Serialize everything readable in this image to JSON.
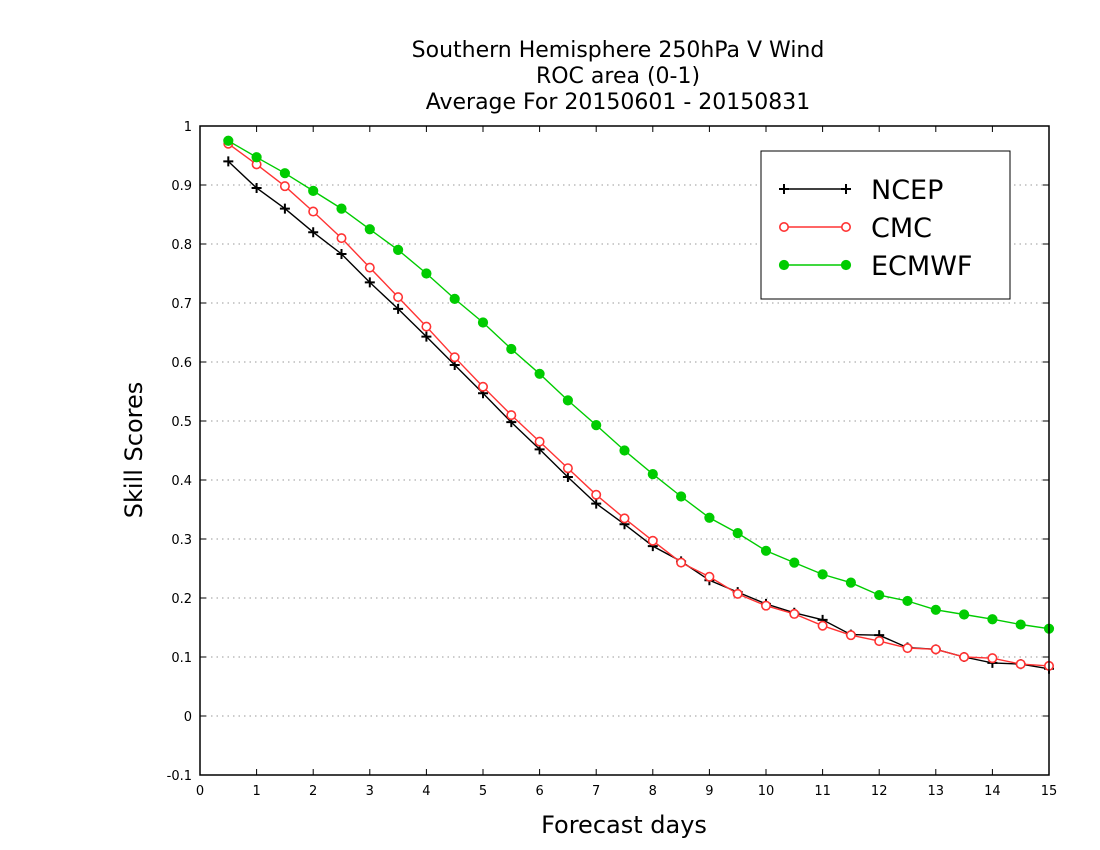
{
  "chart_data": {
    "type": "line",
    "title_lines": [
      "Southern Hemisphere 250hPa V Wind",
      "ROC area (0-1)",
      "Average For 20150601 - 20150831"
    ],
    "xlabel": "Forecast days",
    "ylabel": "Skill Scores",
    "xlim": [
      0,
      15
    ],
    "ylim": [
      -0.1,
      1
    ],
    "x_ticks": [
      0,
      1,
      2,
      3,
      4,
      5,
      6,
      7,
      8,
      9,
      10,
      11,
      12,
      13,
      14,
      15
    ],
    "y_ticks": [
      -0.1,
      0,
      0.1,
      0.2,
      0.3,
      0.4,
      0.5,
      0.6,
      0.7,
      0.8,
      0.9,
      1
    ],
    "y_tick_labels": [
      "-0.1",
      "0",
      "0.1",
      "0.2",
      "0.3",
      "0.4",
      "0.5",
      "0.6",
      "0.7",
      "0.8",
      "0.9",
      "1"
    ],
    "grid": "horizontal dotted",
    "legend_position": "top-right",
    "x": [
      0.5,
      1,
      1.5,
      2,
      2.5,
      3,
      3.5,
      4,
      4.5,
      5,
      5.5,
      6,
      6.5,
      7,
      7.5,
      8,
      8.5,
      9,
      9.5,
      10,
      10.5,
      11,
      11.5,
      12,
      12.5,
      13,
      13.5,
      14,
      14.5,
      15
    ],
    "series": [
      {
        "name": "NCEP",
        "color": "#000000",
        "marker": "plus",
        "values": [
          0.94,
          0.895,
          0.86,
          0.82,
          0.783,
          0.735,
          0.69,
          0.643,
          0.595,
          0.547,
          0.498,
          0.452,
          0.405,
          0.36,
          0.325,
          0.288,
          0.262,
          0.23,
          0.21,
          0.19,
          0.175,
          0.163,
          0.138,
          0.137,
          0.116,
          0.113,
          0.1,
          0.09,
          0.088,
          0.08
        ]
      },
      {
        "name": "CMC",
        "color": "#ff3333",
        "marker": "open-circle",
        "values": [
          0.97,
          0.935,
          0.898,
          0.855,
          0.81,
          0.76,
          0.71,
          0.66,
          0.608,
          0.558,
          0.51,
          0.465,
          0.42,
          0.375,
          0.335,
          0.297,
          0.26,
          0.236,
          0.207,
          0.187,
          0.173,
          0.153,
          0.137,
          0.127,
          0.115,
          0.113,
          0.1,
          0.098,
          0.088,
          0.085
        ]
      },
      {
        "name": "ECMWF",
        "color": "#00cc00",
        "marker": "filled-circle",
        "values": [
          0.975,
          0.947,
          0.92,
          0.89,
          0.86,
          0.825,
          0.79,
          0.75,
          0.707,
          0.667,
          0.622,
          0.58,
          0.535,
          0.493,
          0.45,
          0.41,
          0.372,
          0.336,
          0.31,
          0.28,
          0.26,
          0.24,
          0.226,
          0.205,
          0.195,
          0.18,
          0.172,
          0.164,
          0.155,
          0.148
        ]
      }
    ]
  }
}
